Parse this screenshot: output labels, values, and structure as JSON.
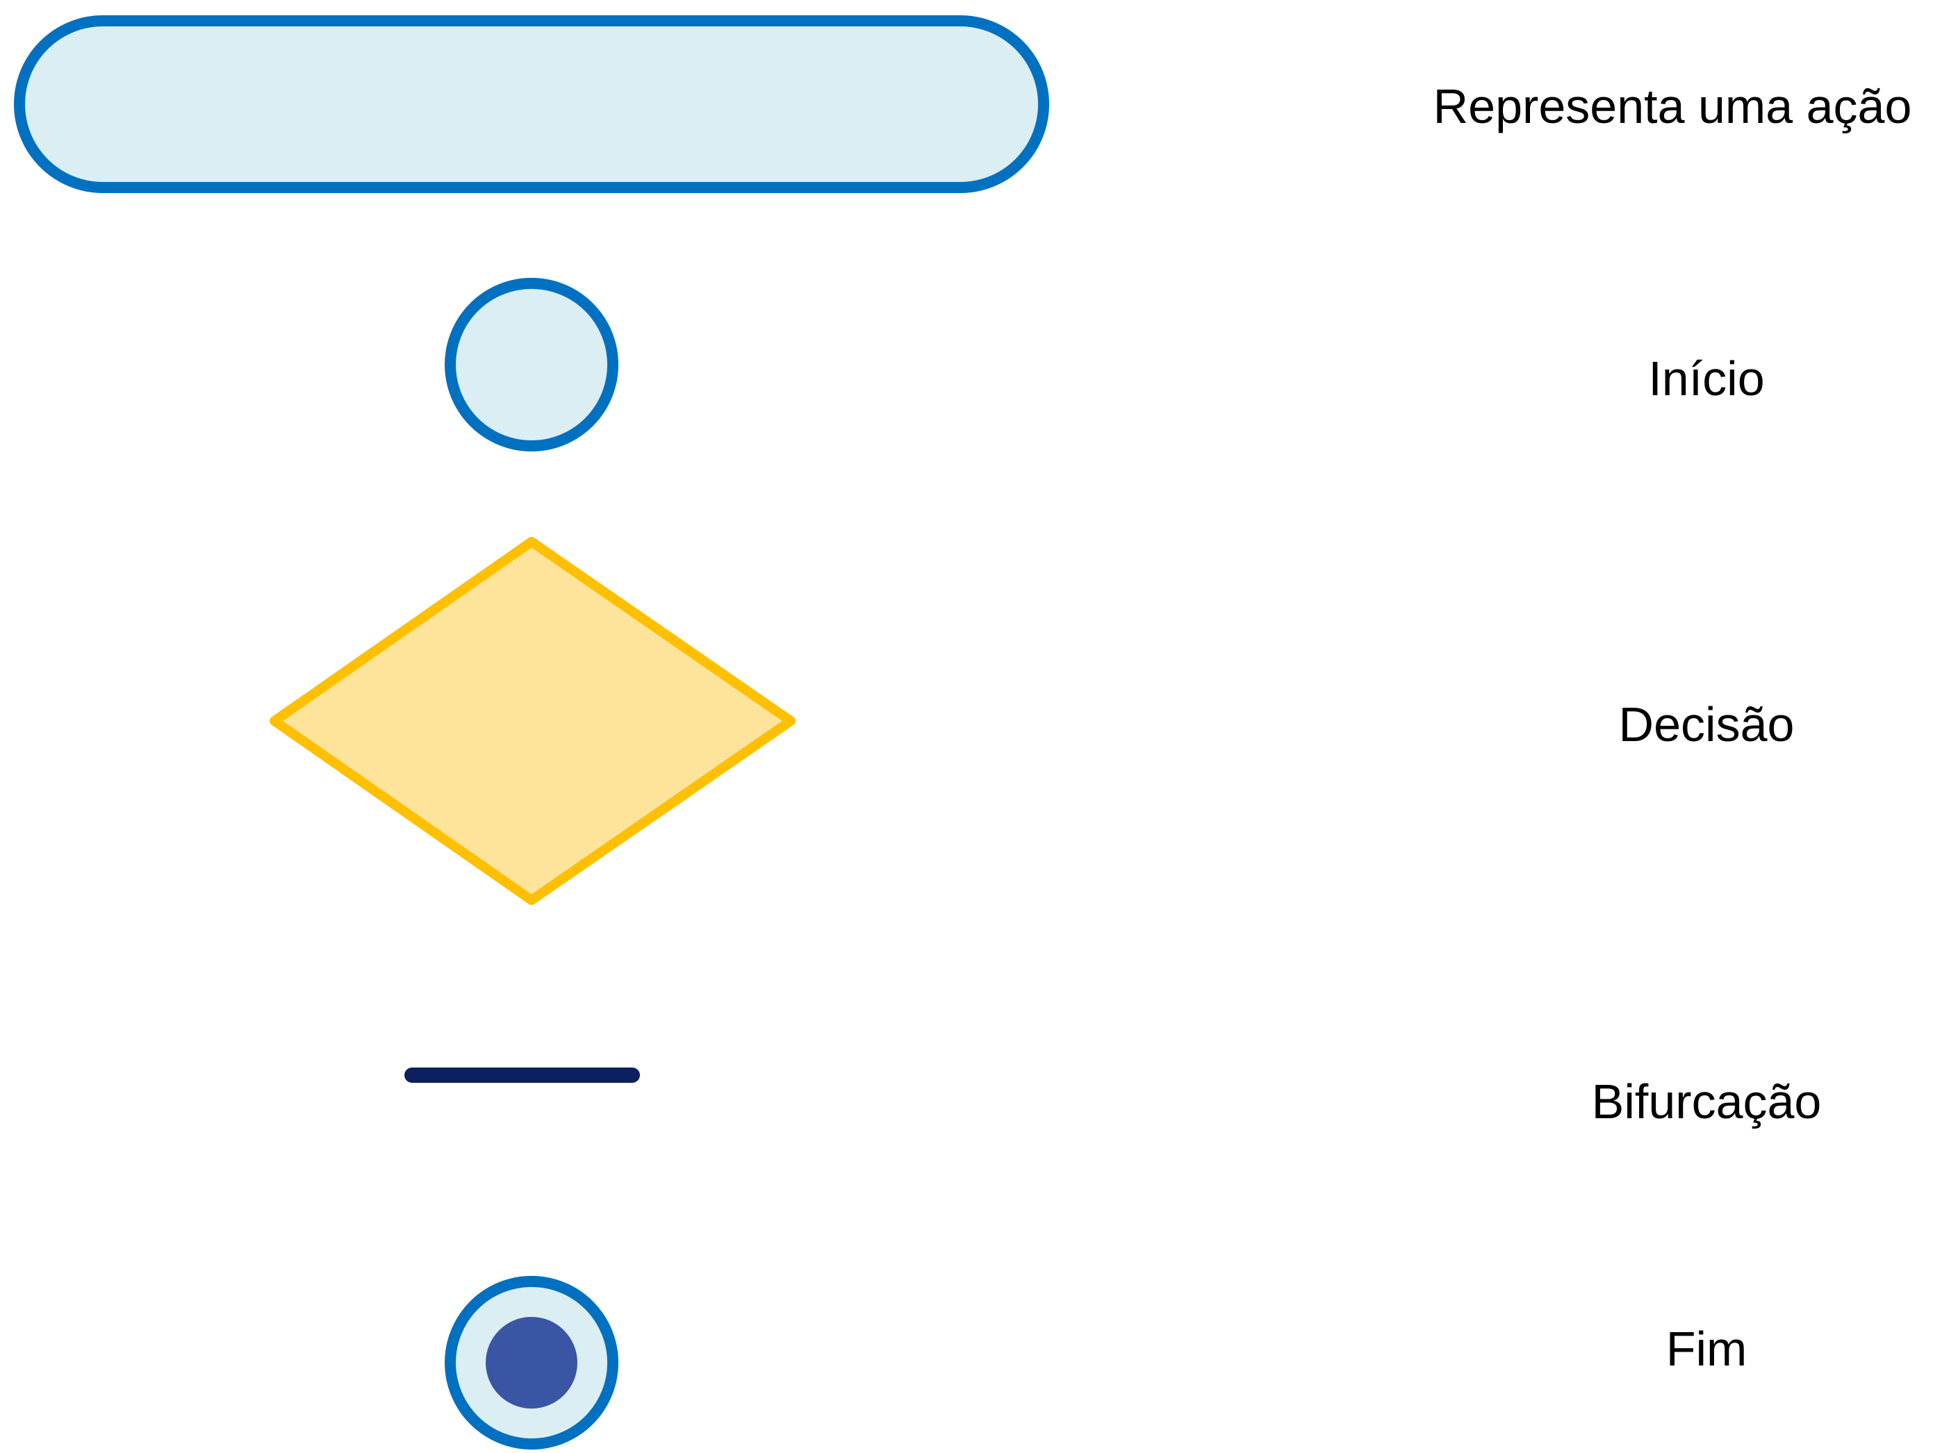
{
  "legend": {
    "items": [
      {
        "symbol": "action",
        "label": "Representa uma ação"
      },
      {
        "symbol": "start",
        "label": "Início"
      },
      {
        "symbol": "decision",
        "label": "Decisão"
      },
      {
        "symbol": "fork",
        "label": "Bifurcação"
      },
      {
        "symbol": "end",
        "label": "Fim"
      }
    ]
  },
  "colors": {
    "shape_stroke": "#0070c0",
    "shape_fill": "#daeef3",
    "decision_stroke": "#ffc000",
    "decision_fill": "#fde49a",
    "fork_bar": "#0c1f5e",
    "end_dot": "#3b55a5"
  }
}
